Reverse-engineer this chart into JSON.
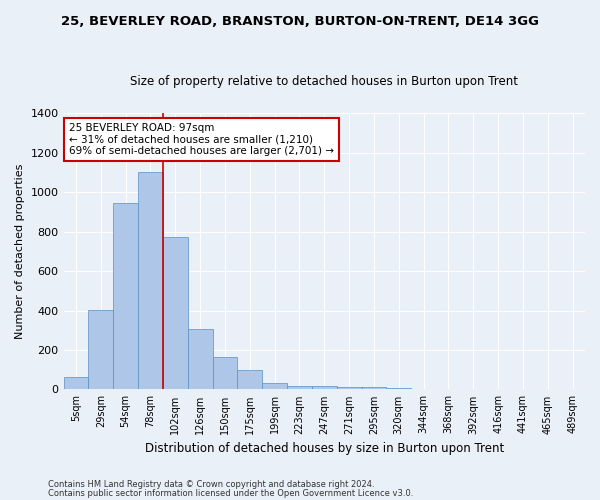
{
  "title1": "25, BEVERLEY ROAD, BRANSTON, BURTON-ON-TRENT, DE14 3GG",
  "title2": "Size of property relative to detached houses in Burton upon Trent",
  "xlabel": "Distribution of detached houses by size in Burton upon Trent",
  "ylabel": "Number of detached properties",
  "categories": [
    "5sqm",
    "29sqm",
    "54sqm",
    "78sqm",
    "102sqm",
    "126sqm",
    "150sqm",
    "175sqm",
    "199sqm",
    "223sqm",
    "247sqm",
    "271sqm",
    "295sqm",
    "320sqm",
    "344sqm",
    "368sqm",
    "392sqm",
    "416sqm",
    "441sqm",
    "465sqm",
    "489sqm"
  ],
  "values": [
    65,
    405,
    945,
    1100,
    775,
    305,
    165,
    100,
    35,
    18,
    15,
    12,
    10,
    5,
    3,
    2,
    2,
    2,
    1,
    1,
    1
  ],
  "bar_color": "#aec6e8",
  "bar_edge_color": "#5a8fc2",
  "annotation_text": "25 BEVERLEY ROAD: 97sqm\n← 31% of detached houses are smaller (1,210)\n69% of semi-detached houses are larger (2,701) →",
  "annotation_box_color": "#ffffff",
  "annotation_box_edge_color": "#cc0000",
  "vline_color": "#cc0000",
  "vline_x_index": 3.5,
  "footer1": "Contains HM Land Registry data © Crown copyright and database right 2024.",
  "footer2": "Contains public sector information licensed under the Open Government Licence v3.0.",
  "bg_color": "#eaf0f8",
  "grid_color": "#ffffff",
  "ylim": [
    0,
    1400
  ]
}
